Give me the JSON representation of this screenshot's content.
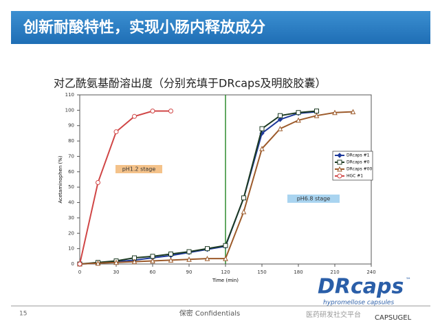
{
  "slide": {
    "title": "创新耐酸特性，实现小肠内释放成分",
    "page": "15",
    "footer": "保密 Confidentials",
    "logo": "DRcaps",
    "logo_mark": "™",
    "logo_sub": "hypromellose capsules",
    "brand": "CAPSUGEL",
    "watermark": "医药研发社交平台"
  },
  "chart_data": {
    "type": "line",
    "title": "对乙酰氨基酚溶出度（分别充填于DRcaps及明胶胶囊）",
    "x_label": "Time (min)",
    "y_label": "Acetaminophen (%)",
    "xlim": [
      0,
      240
    ],
    "xticks": [
      0,
      30,
      60,
      90,
      120,
      150,
      180,
      210,
      240
    ],
    "ylim": [
      0,
      110
    ],
    "yticks": [
      0,
      10,
      20,
      30,
      40,
      50,
      60,
      70,
      80,
      90,
      100,
      110
    ],
    "stage_boundary": 120,
    "annotations": [
      "pH1.2 stage",
      "pH6.8 stage"
    ],
    "legend": "right",
    "series": [
      {
        "name": "DRcaps #1",
        "color": "#1f3a9a",
        "marker": "diamond",
        "x": [
          0,
          15,
          30,
          45,
          60,
          75,
          90,
          105,
          120,
          135,
          150,
          165,
          180,
          195
        ],
        "values": [
          0,
          0.5,
          1.5,
          2.5,
          4,
          5.5,
          7.5,
          9.5,
          11.5,
          43,
          85,
          94,
          98,
          99
        ]
      },
      {
        "name": "DRcaps #0",
        "color": "#1c3a22",
        "marker": "square",
        "x": [
          0,
          15,
          30,
          45,
          60,
          75,
          90,
          105,
          120,
          135,
          150,
          165,
          180,
          195
        ],
        "values": [
          0,
          1,
          2,
          4,
          5,
          6.5,
          8,
          10,
          12,
          43,
          88,
          96.5,
          98.5,
          99.5
        ]
      },
      {
        "name": "DRcaps #00",
        "color": "#9c5a2a",
        "marker": "triangle",
        "x": [
          0,
          15,
          30,
          45,
          60,
          75,
          90,
          105,
          120,
          135,
          150,
          165,
          180,
          195,
          210,
          225
        ],
        "values": [
          0,
          0.5,
          1,
          1.5,
          2,
          2.5,
          3,
          3.5,
          3.5,
          34,
          75,
          88,
          93.5,
          96.5,
          98.5,
          99
        ]
      },
      {
        "name": "HGC #1",
        "color": "#d04545",
        "marker": "circle",
        "x": [
          0,
          15,
          30,
          45,
          60,
          75
        ],
        "values": [
          0,
          53,
          86,
          96,
          99.5,
          99.5
        ]
      }
    ]
  }
}
